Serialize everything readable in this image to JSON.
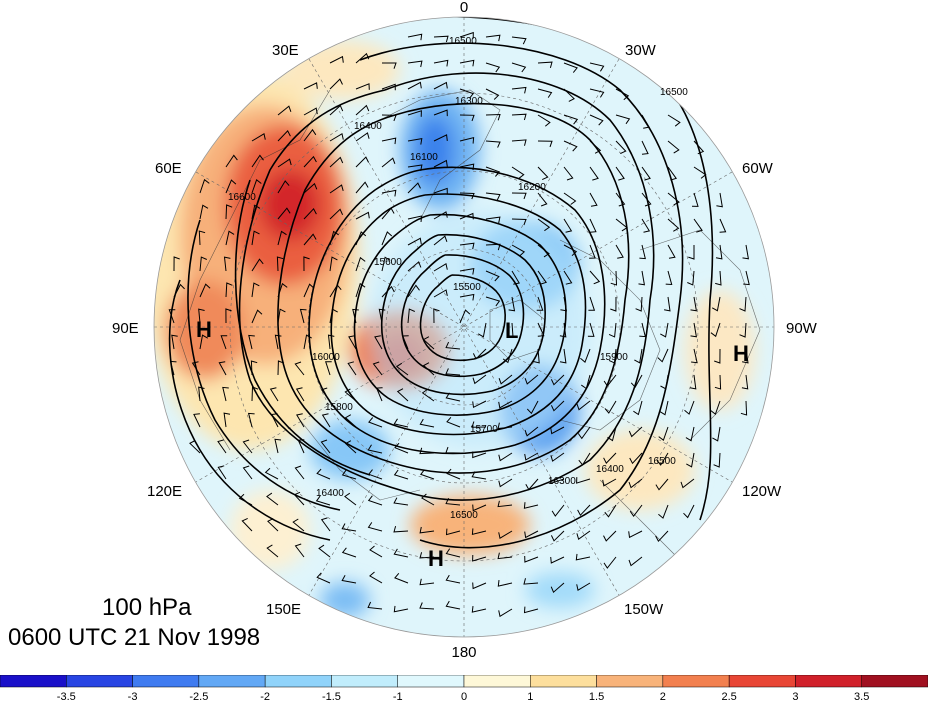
{
  "titles": {
    "level": "100 hPa",
    "time": "0600 UTC 21 Nov 1998"
  },
  "longitude_labels": [
    "0",
    "30W",
    "60W",
    "90W",
    "120W",
    "150W",
    "180",
    "150E",
    "120E",
    "90E",
    "60E",
    "30E"
  ],
  "highs_lows": [
    {
      "label": "H",
      "location": "Siberia near 90E"
    },
    {
      "label": "H",
      "location": "near 90W"
    },
    {
      "label": "H",
      "location": "North Pacific near 180"
    },
    {
      "label": "L",
      "location": "near pole"
    }
  ],
  "contour_labels": [
    "16500",
    "16300",
    "16400",
    "16200",
    "16100",
    "15900",
    "15700",
    "15500",
    "16600",
    "16000",
    "15800",
    "15600"
  ],
  "colorbar": {
    "colors": [
      "#1a10c9",
      "#2845e3",
      "#3f7bf0",
      "#62a8f5",
      "#90d3fa",
      "#c1edfc",
      "#e0f8fd",
      "#fef8d8",
      "#fddf9d",
      "#f8b37a",
      "#f2804f",
      "#e84635",
      "#d0202a",
      "#a01020"
    ],
    "tick_labels": [
      "-3.5",
      "-3",
      "-2.5",
      "-2",
      "-1.5",
      "-1",
      "0",
      "1",
      "1.5",
      "2",
      "2.5",
      "3",
      "3.5"
    ]
  }
}
